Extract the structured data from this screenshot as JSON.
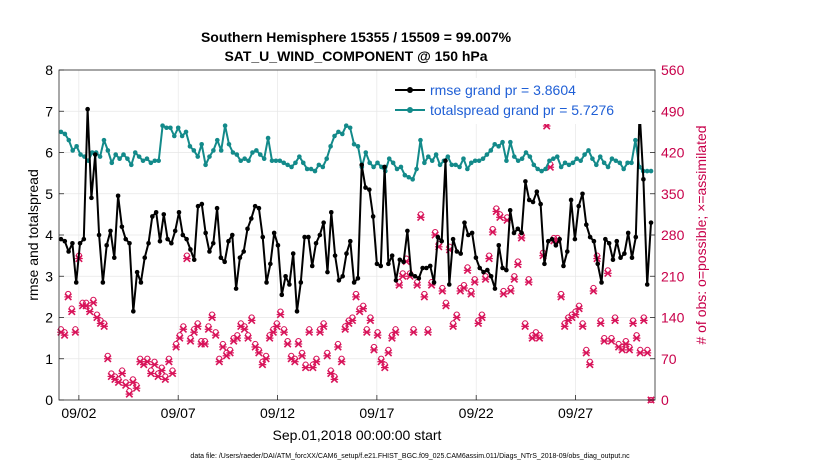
{
  "chart_data": {
    "type": "line",
    "title": "Southern Hemisphere 15355 / 15509 = 99.007%",
    "subtitle": "SAT_U_WIND_COMPONENT @ 150 hPa",
    "xlabel": "Sep.01,2018 00:00:00 start",
    "ylabel": "rmse and totalspread",
    "ylabel_right": "# of obs: o=possible; ×=assimilated",
    "x_ticks": [
      "09/02",
      "09/07",
      "09/12",
      "09/17",
      "09/22",
      "09/27"
    ],
    "x_tick_days": [
      1,
      6,
      11,
      16,
      21,
      26
    ],
    "xlim_days": [
      0,
      30
    ],
    "ylim": [
      0,
      8
    ],
    "yticks": [
      0,
      1,
      2,
      3,
      4,
      5,
      6,
      7,
      8
    ],
    "ylim_right": [
      0,
      560
    ],
    "yticks_right": [
      0,
      70,
      140,
      210,
      280,
      350,
      420,
      490,
      560
    ],
    "legend_position": "top-right",
    "footnote": "data file: /Users/raeder/DAI/ATM_forcXX/CAM6_setup/f.e21.FHIST_BGC.f09_025.CAM6assim.011/Diags_NTrS_2018-09/obs_diag_output.nc",
    "colors": {
      "rmse": "#000000",
      "spread": "#138a8a",
      "obs": "#d8145a",
      "right_axis": "#c8004a",
      "legend_text": "#1f5fd6"
    },
    "series": [
      {
        "name": "rmse grand pr = 3.8604",
        "values": [
          3.9,
          3.85,
          3.6,
          3.8,
          2.85,
          3.8,
          3.9,
          7.05,
          4.9,
          5.95,
          4.0,
          2.85,
          3.75,
          4.1,
          3.45,
          4.95,
          4.2,
          3.9,
          3.8,
          2.15,
          3.1,
          2.85,
          3.45,
          3.8,
          4.45,
          4.55,
          3.85,
          4.5,
          3.9,
          3.8,
          4.1,
          4.55,
          4.0,
          3.9,
          3.65,
          3.4,
          4.7,
          4.75,
          4.05,
          3.6,
          3.8,
          4.65,
          3.45,
          3.35,
          3.85,
          4.0,
          2.7,
          3.45,
          3.6,
          4.15,
          4.4,
          4.7,
          4.65,
          3.95,
          2.85,
          3.3,
          4.05,
          3.75,
          2.55,
          3.0,
          2.8,
          3.55,
          2.15,
          2.85,
          3.95,
          3.95,
          3.25,
          3.8,
          4.0,
          4.3,
          3.1,
          4.55,
          3.5,
          2.9,
          3.0,
          3.55,
          3.85,
          2.85,
          2.95,
          5.7,
          5.15,
          5.1,
          4.45,
          3.3,
          3.25,
          5.65,
          3.3,
          3.5,
          2.9,
          3.4,
          3.35,
          4.1,
          3.05,
          3.0,
          2.95,
          3.2,
          3.2,
          3.25,
          2.85,
          3.95,
          3.85,
          5.8,
          2.8,
          3.9,
          3.6,
          3.55,
          4.3,
          4.0,
          4.05,
          3.45,
          3.2,
          3.1,
          3.15,
          3.0,
          2.7,
          3.75,
          3.2,
          3.15,
          4.6,
          4.05,
          4.15,
          4.05,
          5.3,
          4.85,
          4.8,
          5.05,
          4.75,
          3.3,
          3.85,
          3.9,
          3.75,
          3.9,
          3.25,
          3.6,
          4.85,
          3.9,
          4.7,
          5.0,
          4.25,
          3.95,
          3.85,
          3.3,
          2.85,
          3.9,
          3.8,
          3.4,
          3.85,
          3.45,
          3.55,
          4.05,
          3.45,
          3.95,
          7.0,
          5.35,
          2.8,
          4.3
        ]
      },
      {
        "name": "totalspread grand pr = 5.7276",
        "values": [
          6.5,
          6.45,
          6.3,
          6.05,
          6.15,
          5.95,
          5.9,
          5.8,
          6.0,
          6.0,
          5.9,
          6.3,
          6.05,
          5.75,
          5.95,
          5.85,
          5.95,
          5.85,
          5.7,
          6.0,
          5.9,
          5.8,
          5.85,
          5.75,
          5.8,
          5.8,
          6.65,
          6.6,
          6.6,
          6.4,
          6.6,
          6.4,
          6.5,
          6.15,
          6.05,
          5.9,
          6.2,
          5.7,
          5.9,
          6.05,
          6.3,
          6.05,
          6.65,
          6.2,
          6.0,
          5.95,
          5.8,
          5.85,
          5.8,
          6.0,
          6.05,
          5.95,
          5.85,
          6.35,
          5.8,
          5.8,
          5.8,
          5.75,
          5.7,
          5.65,
          5.75,
          5.9,
          5.75,
          5.6,
          5.6,
          5.55,
          5.7,
          5.65,
          5.85,
          6.15,
          6.4,
          6.5,
          6.45,
          6.65,
          6.6,
          6.2,
          6.15,
          5.65,
          6.0,
          5.75,
          5.65,
          5.75,
          5.65,
          5.55,
          5.85,
          5.75,
          5.6,
          5.65,
          5.45,
          5.4,
          5.35,
          5.6,
          6.3,
          5.75,
          5.9,
          5.8,
          5.95,
          5.7,
          5.8,
          5.9,
          5.7,
          5.7,
          5.65,
          5.85,
          5.6,
          5.75,
          5.8,
          5.8,
          5.85,
          5.95,
          6.05,
          6.2,
          6.15,
          6.25,
          5.8,
          6.25,
          5.9,
          5.8,
          5.85,
          6.0,
          5.9,
          5.7,
          5.6,
          5.55,
          5.6,
          5.8,
          5.85,
          5.9,
          5.65,
          5.75,
          5.7,
          5.75,
          5.85,
          5.8,
          5.95,
          6.05,
          5.85,
          5.7,
          5.9,
          5.75,
          5.65,
          5.85,
          5.8,
          5.75,
          5.6,
          5.75,
          5.75,
          6.3,
          5.65,
          5.55,
          5.55,
          5.55
        ]
      },
      {
        "name": "obs possible",
        "marker": "o",
        "values": [
          120,
          115,
          180,
          155,
          120,
          245,
          165,
          165,
          155,
          170,
          145,
          135,
          130,
          75,
          45,
          40,
          35,
          50,
          30,
          15,
          35,
          25,
          70,
          65,
          70,
          50,
          65,
          45,
          55,
          40,
          70,
          50,
          95,
          110,
          125,
          245,
          105,
          120,
          130,
          100,
          100,
          125,
          145,
          115,
          70,
          95,
          80,
          85,
          105,
          110,
          130,
          125,
          110,
          140,
          95,
          85,
          65,
          75,
          110,
          120,
          130,
          150,
          120,
          100,
          75,
          70,
          100,
          80,
          60,
          120,
          60,
          70,
          120,
          130,
          80,
          50,
          40,
          95,
          70,
          125,
          135,
          140,
          180,
          155,
          160,
          120,
          140,
          90,
          115,
          70,
          60,
          85,
          110,
          120,
          200,
          215,
          240,
          215,
          120,
          200,
          315,
          180,
          120,
          200,
          285,
          265,
          190,
          165,
          260,
          130,
          145,
          190,
          195,
          225,
          185,
          205,
          135,
          145,
          210,
          245,
          290,
          325,
          315,
          185,
          310,
          190,
          210,
          235,
          280,
          130,
          205,
          110,
          115,
          110,
          250,
          470,
          400,
          275,
          275,
          180,
          130,
          140,
          145,
          150,
          160,
          130,
          85,
          65,
          190,
          245,
          135,
          105,
          220,
          105,
          140,
          95,
          90,
          100,
          90,
          135,
          110,
          85,
          140,
          85,
          0
        ]
      },
      {
        "name": "obs assimilated",
        "marker": "x",
        "values": [
          115,
          110,
          175,
          150,
          115,
          240,
          160,
          160,
          150,
          165,
          140,
          130,
          125,
          70,
          40,
          35,
          30,
          45,
          25,
          10,
          30,
          20,
          65,
          60,
          65,
          45,
          60,
          40,
          50,
          35,
          65,
          45,
          90,
          105,
          120,
          240,
          100,
          115,
          125,
          95,
          95,
          120,
          140,
          110,
          65,
          90,
          75,
          80,
          100,
          105,
          125,
          120,
          105,
          135,
          90,
          80,
          60,
          70,
          105,
          115,
          125,
          145,
          115,
          95,
          70,
          65,
          95,
          75,
          55,
          115,
          55,
          65,
          115,
          125,
          75,
          45,
          35,
          90,
          65,
          120,
          130,
          135,
          175,
          150,
          155,
          115,
          135,
          85,
          110,
          65,
          55,
          80,
          105,
          115,
          195,
          210,
          235,
          210,
          115,
          195,
          310,
          175,
          115,
          195,
          280,
          260,
          185,
          160,
          255,
          125,
          140,
          185,
          190,
          220,
          180,
          200,
          130,
          140,
          205,
          240,
          285,
          320,
          310,
          180,
          305,
          185,
          205,
          230,
          275,
          125,
          200,
          105,
          110,
          105,
          245,
          465,
          395,
          270,
          270,
          175,
          125,
          135,
          140,
          145,
          155,
          125,
          80,
          60,
          185,
          240,
          130,
          100,
          215,
          100,
          135,
          90,
          85,
          95,
          85,
          130,
          105,
          80,
          135,
          80,
          0
        ]
      }
    ]
  }
}
